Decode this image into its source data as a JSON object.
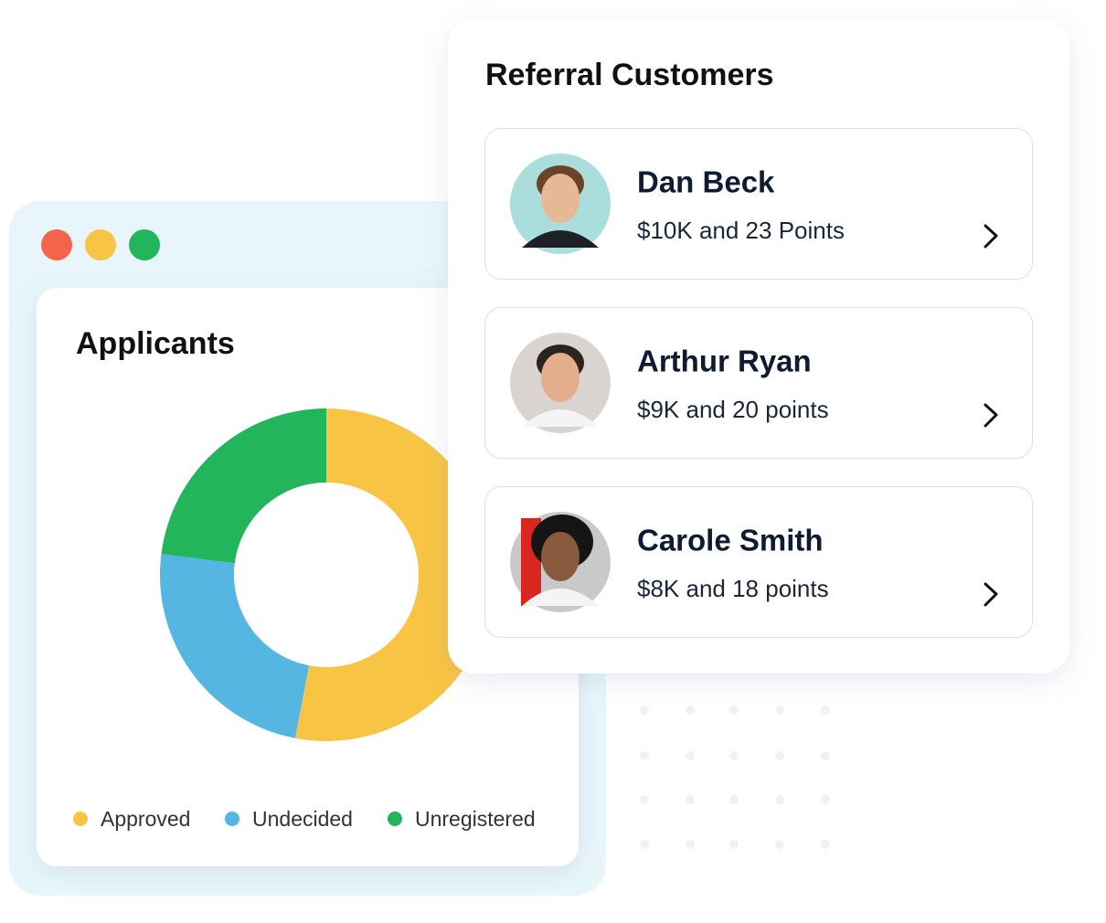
{
  "chart_data": {
    "type": "pie",
    "title": "Applicants",
    "categories": [
      "Approved",
      "Undecided",
      "Unregistered"
    ],
    "values": [
      53,
      24,
      23
    ],
    "colors": [
      "#f8c443",
      "#55b6e2",
      "#22b55c"
    ]
  },
  "referrals": {
    "title": "Referral Customers",
    "items": [
      {
        "name": "Dan Beck",
        "detail": "$10K and 23 Points"
      },
      {
        "name": "Arthur Ryan",
        "detail": "$9K and 20 points"
      },
      {
        "name": "Carole Smith",
        "detail": "$8K and 18 points"
      }
    ]
  }
}
